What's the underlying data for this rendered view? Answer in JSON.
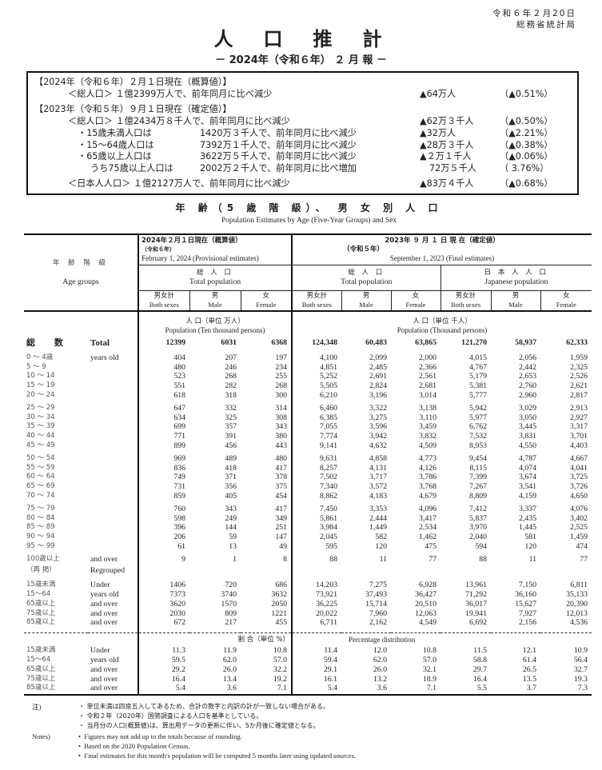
{
  "header": {
    "date": "令和６年２月20日",
    "agency": "総務省統計局",
    "title": "人口推計",
    "subtitle": "－ 2024年（令和６年） ２ 月 報 －"
  },
  "summary": {
    "s1_head": "【2024年（令和６年）２月１日現在（概算値）】",
    "s1_total": {
      "label": "＜総人口＞ １億2399万人で、前年同月に比べ減少",
      "change": "▲64万人",
      "pct": "（▲0.51%）"
    },
    "s2_head": "【2023年（令和５年）９月１日現在（確定値）】",
    "s2_total": {
      "label": "＜総人口＞ １億2434万８千人で、前年同月に比べ減少",
      "change": "▲62万３千人",
      "pct": "（▲0.50%）"
    },
    "s2_items": [
      {
        "label": "・15歳未満人口は",
        "value": "1420万３千人で、前年同月に比べ減少",
        "change": "▲32万人",
        "pct": "（▲2.21%）"
      },
      {
        "label": "・15～64歳人口は",
        "value": "7392万１千人で、前年同月に比べ減少",
        "change": "▲28万３千人",
        "pct": "（▲0.38%）"
      },
      {
        "label": "・65歳以上人口は",
        "value": "3622万５千人で、前年同月に比べ減少",
        "change": "▲２万１千人",
        "pct": "（▲0.06%）"
      },
      {
        "label": "うち75歳以上人口は",
        "value": "2002万２千人で、前年同月に比べ増加",
        "change": "72万５千人",
        "pct": "（ 3.76%）"
      }
    ],
    "japanese": {
      "label": "＜日本人人口＞ １億2127万人で、前年同月に比べ減少",
      "change": "▲83万４千人",
      "pct": "（▲0.68%）"
    }
  },
  "section": {
    "title": "年 齢（5 歳 階 級）、 男 女 別 人 口",
    "subtitle": "Population Estimates by Age (Five-Year Groups) and Sex"
  },
  "table": {
    "age_jp": "年 齢 階 級",
    "age_en": "Age groups",
    "h2024": "2024年２月１日現在（概算値）",
    "h2024_sub": "（令和６年）",
    "h2024_en": "February 1, 2024 (Provisional estimates)",
    "h2023": "2023年 ９ 月 １ 日 現 在（確定値）",
    "h2023_sub": "（令和５年）",
    "h2023_en": "September 1, 2023 (Final estimates)",
    "total_pop_jp": "総 人 口",
    "total_pop_en": "Total population",
    "jp_pop_jp": "日 本 人 人 口",
    "jp_pop_en": "Japanese population",
    "sex": [
      {
        "jp": "男女計",
        "en": "Both sexes"
      },
      {
        "jp": "男",
        "en": "Male"
      },
      {
        "jp": "女",
        "en": "Female"
      }
    ],
    "unit_left_jp": "人 口（単位 万人）",
    "unit_left_en": "Population (Ten thousand persons)",
    "unit_right_jp": "人 口（単位 千人）",
    "unit_right_en": "Population (Thousand persons)",
    "total": {
      "jp": "総 数",
      "en": "Total",
      "values": [
        "12399",
        "6031",
        "6368",
        "124,348",
        "60,483",
        "63,865",
        "121,270",
        "58,937",
        "62,333"
      ]
    },
    "age_rows": [
      {
        "jp": "0 ～ 4歳",
        "en": "years old",
        "values": [
          "404",
          "207",
          "197",
          "4,100",
          "2,099",
          "2,000",
          "4,015",
          "2,056",
          "1,959"
        ]
      },
      {
        "jp": "5 ～ 9",
        "en": "",
        "values": [
          "480",
          "246",
          "234",
          "4,851",
          "2,485",
          "2,366",
          "4,767",
          "2,442",
          "2,325"
        ]
      },
      {
        "jp": "10 ～ 14",
        "en": "",
        "values": [
          "523",
          "268",
          "255",
          "5,252",
          "2,691",
          "2,561",
          "5,179",
          "2,653",
          "2,526"
        ]
      },
      {
        "jp": "15 ～ 19",
        "en": "",
        "values": [
          "551",
          "282",
          "268",
          "5,505",
          "2,824",
          "2,681",
          "5,381",
          "2,760",
          "2,621"
        ]
      },
      {
        "jp": "20 ～ 24",
        "en": "",
        "values": [
          "618",
          "318",
          "300",
          "6,210",
          "3,196",
          "3,014",
          "5,777",
          "2,960",
          "2,817"
        ]
      },
      {
        "jp": "25 ～ 29",
        "en": "",
        "values": [
          "647",
          "332",
          "314",
          "6,460",
          "3,322",
          "3,138",
          "5,942",
          "3,029",
          "2,913"
        ]
      },
      {
        "jp": "30 ～ 34",
        "en": "",
        "values": [
          "634",
          "325",
          "308",
          "6,385",
          "3,275",
          "3,110",
          "5,977",
          "3,050",
          "2,927"
        ]
      },
      {
        "jp": "35 ～ 39",
        "en": "",
        "values": [
          "699",
          "357",
          "343",
          "7,055",
          "3,596",
          "3,459",
          "6,762",
          "3,445",
          "3,317"
        ]
      },
      {
        "jp": "40 ～ 44",
        "en": "",
        "values": [
          "771",
          "391",
          "380",
          "7,774",
          "3,942",
          "3,832",
          "7,532",
          "3,831",
          "3,701"
        ]
      },
      {
        "jp": "45 ～ 49",
        "en": "",
        "values": [
          "899",
          "456",
          "443",
          "9,141",
          "4,632",
          "4,509",
          "8,953",
          "4,550",
          "4,403"
        ]
      },
      {
        "jp": "50 ～ 54",
        "en": "",
        "values": [
          "969",
          "489",
          "480",
          "9,631",
          "4,858",
          "4,773",
          "9,454",
          "4,787",
          "4,667"
        ]
      },
      {
        "jp": "55 ～ 59",
        "en": "",
        "values": [
          "836",
          "418",
          "417",
          "8,257",
          "4,131",
          "4,126",
          "8,115",
          "4,074",
          "4,041"
        ]
      },
      {
        "jp": "60 ～ 64",
        "en": "",
        "values": [
          "749",
          "371",
          "378",
          "7,502",
          "3,717",
          "3,786",
          "7,399",
          "3,674",
          "3,725"
        ]
      },
      {
        "jp": "65 ～ 69",
        "en": "",
        "values": [
          "731",
          "356",
          "375",
          "7,340",
          "3,572",
          "3,768",
          "7,267",
          "3,541",
          "3,726"
        ]
      },
      {
        "jp": "70 ～ 74",
        "en": "",
        "values": [
          "859",
          "405",
          "454",
          "8,862",
          "4,183",
          "4,679",
          "8,809",
          "4,159",
          "4,650"
        ]
      },
      {
        "jp": "75 ～ 79",
        "en": "",
        "values": [
          "760",
          "343",
          "417",
          "7,450",
          "3,353",
          "4,096",
          "7,412",
          "3,337",
          "4,076"
        ]
      },
      {
        "jp": "80 ～ 84",
        "en": "",
        "values": [
          "598",
          "249",
          "349",
          "5,861",
          "2,444",
          "3,417",
          "5,837",
          "2,435",
          "3,402"
        ]
      },
      {
        "jp": "85 ～ 89",
        "en": "",
        "values": [
          "396",
          "144",
          "251",
          "3,984",
          "1,449",
          "2,534",
          "3,970",
          "1,445",
          "2,525"
        ]
      },
      {
        "jp": "90 ～ 94",
        "en": "",
        "values": [
          "206",
          "59",
          "147",
          "2,045",
          "582",
          "1,462",
          "2,040",
          "581",
          "1,459"
        ]
      },
      {
        "jp": "95 ～ 99",
        "en": "",
        "values": [
          "61",
          "13",
          "49",
          "595",
          "120",
          "475",
          "594",
          "120",
          "474"
        ]
      },
      {
        "jp": "100歳以上",
        "en": "and over",
        "values": [
          "9",
          "1",
          "8",
          "88",
          "11",
          "77",
          "88",
          "11",
          "77"
        ]
      }
    ],
    "regrouped_jp": "（再 掲）",
    "regrouped_en": "Regrouped",
    "regrouped_rows": [
      {
        "jp": "15歳未満",
        "en": "Under",
        "values": [
          "1406",
          "720",
          "686",
          "14,203",
          "7,275",
          "6,928",
          "13,961",
          "7,150",
          "6,811"
        ]
      },
      {
        "jp": "15～64",
        "en": "years old",
        "values": [
          "7373",
          "3740",
          "3632",
          "73,921",
          "37,493",
          "36,427",
          "71,292",
          "36,160",
          "35,133"
        ]
      },
      {
        "jp": "65歳以上",
        "en": "and over",
        "values": [
          "3620",
          "1570",
          "2050",
          "36,225",
          "15,714",
          "20,510",
          "36,017",
          "15,627",
          "20,390"
        ]
      },
      {
        "jp": " 75歳以上",
        "en": "and over",
        "values": [
          "2030",
          "809",
          "1221",
          "20,022",
          "7,960",
          "12,063",
          "19,941",
          "7,927",
          "12,013"
        ]
      },
      {
        "jp": "  85歳以上",
        "en": "and over",
        "values": [
          "672",
          "217",
          "455",
          "6,711",
          "2,162",
          "4,549",
          "6,692",
          "2,156",
          "4,536"
        ]
      }
    ],
    "pct_jp": "割 合（単位 %）",
    "pct_en": "Percentage distribution",
    "pct_rows": [
      {
        "jp": "15歳未満",
        "en": "Under",
        "values": [
          "11.3",
          "11.9",
          "10.8",
          "11.4",
          "12.0",
          "10.8",
          "11.5",
          "12.1",
          "10.9"
        ]
      },
      {
        "jp": "15～64",
        "en": "years old",
        "values": [
          "59.5",
          "62.0",
          "57.0",
          "59.4",
          "62.0",
          "57.0",
          "58.8",
          "61.4",
          "56.4"
        ]
      },
      {
        "jp": "65歳以上",
        "en": "and over",
        "values": [
          "29.2",
          "26.0",
          "32.2",
          "29.1",
          "26.0",
          "32.1",
          "29.7",
          "26.5",
          "32.7"
        ]
      },
      {
        "jp": " 75歳以上",
        "en": "and over",
        "values": [
          "16.4",
          "13.4",
          "19.2",
          "16.1",
          "13.2",
          "18.9",
          "16.4",
          "13.5",
          "19.3"
        ]
      },
      {
        "jp": "  85歳以上",
        "en": "and over",
        "values": [
          "5.4",
          "3.6",
          "7.1",
          "5.4",
          "3.6",
          "7.1",
          "5.5",
          "3.7",
          "7.3"
        ]
      }
    ]
  },
  "notes": {
    "jp_label": "注)",
    "en_label": "Notes)",
    "jp": [
      "・ 単位未満は四捨五入してあるため、合計の数字と内訳の計が一致しない場合がある。",
      "・ 令和２年（2020年）国勢調査による人口を基準としている。",
      "・ 当月分の人口(概算値)は、算出用データの更新に伴い、5か月後に確定値となる。"
    ],
    "en": [
      "•  Figures may not add up to the totals because of rounding.",
      "•  Based on the 2020 Population Census.",
      "•  Final estimates for this month's population will be computed 5 months later using updated sources."
    ]
  }
}
